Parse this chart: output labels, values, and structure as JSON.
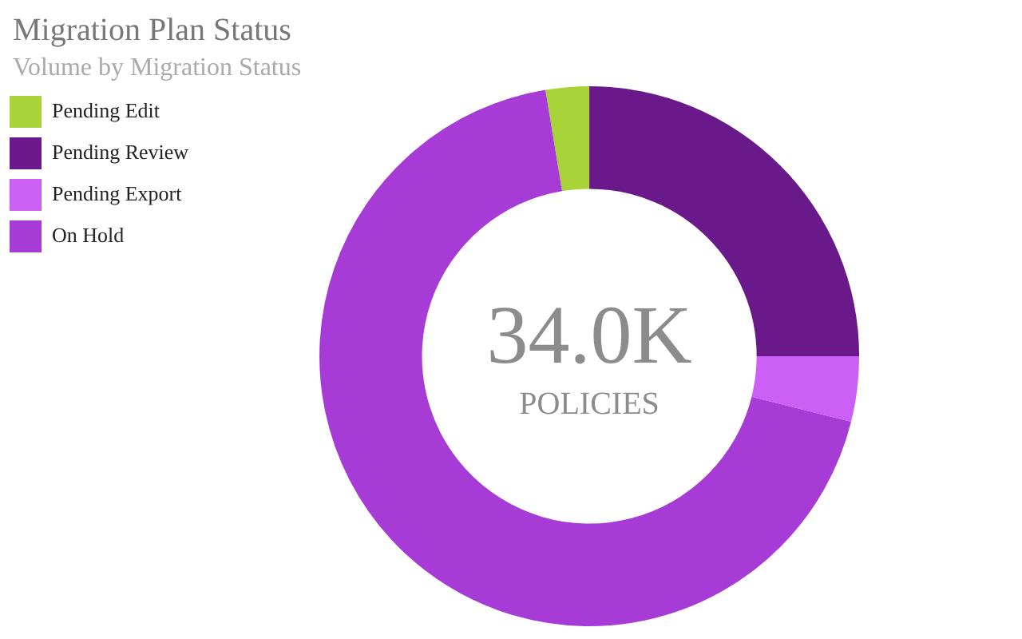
{
  "chart_data": {
    "type": "donut",
    "title": "Migration Plan Status",
    "subtitle": "Volume by Migration Status",
    "categories": [
      "Pending Edit",
      "Pending Review",
      "Pending Export",
      "On Hold"
    ],
    "values": [
      2.6,
      25,
      3.9,
      68.5
    ],
    "colors": [
      "#a8d43a",
      "#69198a",
      "#cc5ff5",
      "#a63bd6"
    ],
    "annotations": [
      "34.0K",
      "POLICIES"
    ],
    "legend": "top left"
  }
}
